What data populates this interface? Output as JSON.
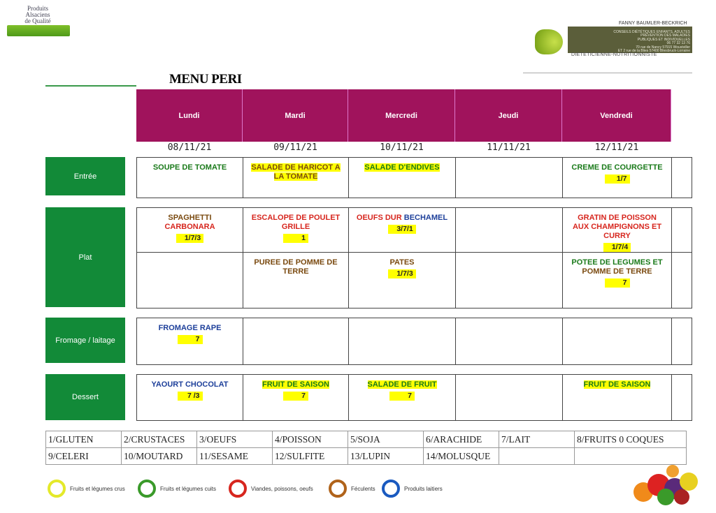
{
  "logos": {
    "left_text": "Produits Alsaciens de Qualité",
    "right_name": "FANNY BAUMLER-BECKRICH",
    "right_lines": [
      "CONSEILS DIÉTÉTIQUES ENFANTS, ADULTES",
      "PRÉVENTION DES MALADIES",
      "PUBLIQUES ET INDIVIDUELLES",
      "06 77 32 13 76",
      "70 rue de Nancy 57915 Woustviller",
      "ET 2 rue de la Blies 57400 Bliesbruck-Lorraine"
    ],
    "right_sub": "DIETETICIENNE-NUTRITIONNISTE"
  },
  "title": "MENU PERI",
  "days": [
    {
      "name": "Lundi",
      "date": "08/11/21"
    },
    {
      "name": "Mardi",
      "date": "09/11/21"
    },
    {
      "name": "Mercredi",
      "date": "10/11/21"
    },
    {
      "name": "Jeudi",
      "date": "11/11/21"
    },
    {
      "name": "Vendredi",
      "date": "12/11/21"
    }
  ],
  "colors": {
    "header": "#a0135c",
    "row_label": "#128a38",
    "red": "#d7261e",
    "brown": "#7a4a10",
    "green": "#1a7a1a",
    "blue": "#1d3f9a",
    "highlight": "#ffff00"
  },
  "rows": [
    {
      "label": "Entrée",
      "lines": [
        [
          {
            "parts": [
              {
                "text": "SOUPE DE TOMATE",
                "color": "#1a7a1a"
              }
            ]
          },
          {
            "parts": [
              {
                "text": "SALADE DE HARICOT A LA TOMATE",
                "color": "#7a4a10",
                "hl": true
              }
            ]
          },
          {
            "parts": [
              {
                "text": "SALADE D'ENDIVES",
                "color": "#1a7a1a",
                "hl": true
              }
            ]
          },
          {
            "parts": []
          },
          {
            "parts": [
              {
                "text": "CREME DE COURGETTE",
                "color": "#1a7a1a"
              }
            ],
            "code": "1/7"
          }
        ]
      ]
    },
    {
      "label": "Plat",
      "lines": [
        [
          {
            "parts": [
              {
                "text": "SPAGHETTI",
                "color": "#7a4a10"
              },
              {
                "text": " CARBONARA",
                "color": "#d7261e"
              }
            ],
            "code": "1/7/3"
          },
          {
            "parts": [
              {
                "text": "ESCALOPE DE POULET GRILLE",
                "color": "#d7261e"
              }
            ],
            "code": "1"
          },
          {
            "parts": [
              {
                "text": "OEUFS DUR",
                "color": "#d7261e"
              },
              {
                "text": " BECHAMEL",
                "color": "#1d3f9a"
              }
            ],
            "code": "3/7/1"
          },
          {
            "parts": []
          },
          {
            "parts": [
              {
                "text": "GRATIN DE POISSON AUX CHAMPIGNONS ET CURRY",
                "color": "#d7261e"
              }
            ],
            "code": "1/7/4"
          }
        ],
        [
          {
            "parts": []
          },
          {
            "parts": [
              {
                "text": "PUREE DE POMME DE TERRE",
                "color": "#7a4a10"
              }
            ]
          },
          {
            "parts": [
              {
                "text": "PATES",
                "color": "#7a4a10"
              }
            ],
            "code": "1/7/3"
          },
          {
            "parts": []
          },
          {
            "parts": [
              {
                "text": "POTEE DE LEGUMES ET",
                "color": "#1a7a1a"
              },
              {
                "text": " POMME DE TERRE",
                "color": "#7a4a10"
              }
            ],
            "code": "7"
          }
        ]
      ]
    },
    {
      "label": "Fromage / laitage",
      "lines": [
        [
          {
            "parts": [
              {
                "text": "FROMAGE RAPE",
                "color": "#1d3f9a"
              }
            ],
            "code": "7"
          },
          {
            "parts": []
          },
          {
            "parts": []
          },
          {
            "parts": []
          },
          {
            "parts": []
          }
        ]
      ]
    },
    {
      "label": "Dessert",
      "lines": [
        [
          {
            "parts": [
              {
                "text": "YAOURT CHOCOLAT",
                "color": "#1d3f9a"
              }
            ],
            "code": "7 /3"
          },
          {
            "parts": [
              {
                "text": "FRUIT DE SAISON",
                "color": "#1a7a1a",
                "hl": true
              }
            ],
            "code": "7"
          },
          {
            "parts": [
              {
                "text": "SALADE DE FRUIT",
                "color": "#1a7a1a",
                "hl": true
              }
            ],
            "code": "7"
          },
          {
            "parts": []
          },
          {
            "parts": [
              {
                "text": "FRUIT DE SAISON",
                "color": "#1a7a1a",
                "hl": true
              }
            ]
          }
        ]
      ]
    }
  ],
  "allergens": [
    [
      "1/GLUTEN",
      "2/CRUSTACES",
      "3/OEUFS",
      "4/POISSON",
      "5/SOJA",
      "6/ARACHIDE",
      "7/LAIT",
      "8/FRUITS 0 COQUES"
    ],
    [
      "9/CELERI",
      "10/MOUTARD",
      "11/SESAME",
      "12/SULFITE",
      "13/LUPIN",
      "14/MOLUSQUE",
      "",
      ""
    ]
  ],
  "legend": [
    {
      "label": "Fruits et légumes crus",
      "color": "#e4e92a"
    },
    {
      "label": "Fruits et légumes cuits",
      "color": "#3a9a2a"
    },
    {
      "label": "Viandes, poissons, oeufs",
      "color": "#d7261e"
    },
    {
      "label": "Féculents",
      "color": "#b0631a"
    },
    {
      "label": "Produits laitiers",
      "color": "#1a5ac0"
    }
  ]
}
